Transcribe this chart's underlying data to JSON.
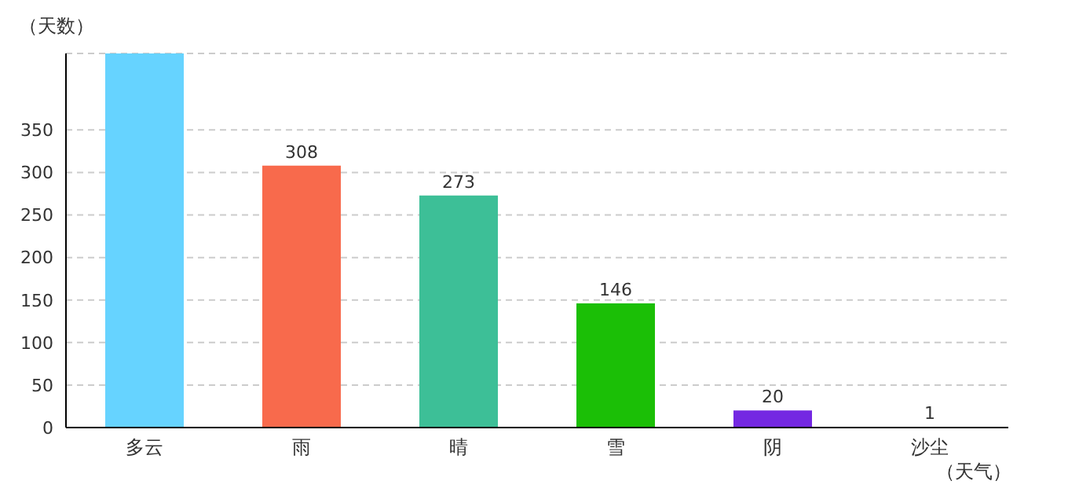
{
  "chart_data": {
    "type": "bar",
    "ylabel": "（天数）",
    "xlabel": "（天气）",
    "categories": [
      "多云",
      "雨",
      "晴",
      "雪",
      "阴",
      "沙尘"
    ],
    "values": [
      440,
      308,
      273,
      146,
      20,
      1
    ],
    "value_labels": [
      null,
      "308",
      "273",
      "146",
      "20",
      "1"
    ],
    "colors": [
      "#66d3ff",
      "#f86a4c",
      "#3dbf97",
      "#1bbf06",
      "#7428e2",
      "#2eb88a"
    ],
    "ylim": [
      0,
      440
    ],
    "yticks": [
      0,
      50,
      100,
      150,
      200,
      250,
      300,
      350
    ],
    "grid": "y"
  }
}
